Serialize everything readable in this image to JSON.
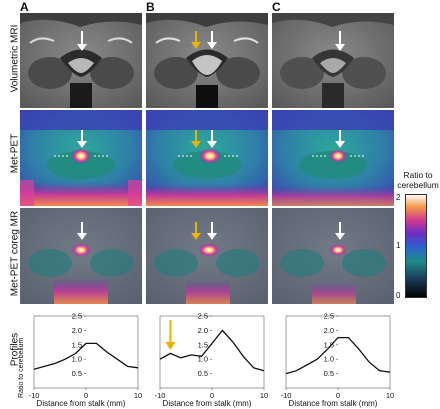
{
  "columns": [
    {
      "letter": "A"
    },
    {
      "letter": "B"
    },
    {
      "letter": "C"
    }
  ],
  "rows": [
    {
      "label": "Volumetric MRI"
    },
    {
      "label": "Met-PET"
    },
    {
      "label": "Met-PET coreg MR"
    },
    {
      "label": "Profiles"
    }
  ],
  "colorbar": {
    "title_line1": "Ratio to",
    "title_line2": "cerebellum",
    "ticks": [
      "2",
      "1",
      "0"
    ],
    "range": [
      0,
      2
    ]
  },
  "colors": {
    "white_arrow": "#ffffff",
    "yellow_arrow": "#e8b400"
  },
  "chart_data": [
    {
      "type": "line",
      "panel": "A",
      "ylabel": "Ratio to cerebellum",
      "xlabel": "Distance from stalk (mm)",
      "xlim": [
        -10,
        10
      ],
      "ylim": [
        0,
        2.5
      ],
      "xticks": [
        "-10",
        "0",
        "10"
      ],
      "yticks": [
        "0.0",
        "0.5",
        "1.0",
        "1.5",
        "2.0",
        "2.5"
      ],
      "x": [
        -10,
        -8,
        -6,
        -4,
        -2,
        0,
        2,
        4,
        6,
        8,
        10
      ],
      "values": [
        0.65,
        0.75,
        0.85,
        1.0,
        1.2,
        1.55,
        1.55,
        1.25,
        1.0,
        0.75,
        0.7
      ]
    },
    {
      "type": "line",
      "panel": "B",
      "xlabel": "Distance from stalk (mm)",
      "xlim": [
        -10,
        10
      ],
      "ylim": [
        0,
        2.5
      ],
      "xticks": [
        "-10",
        "0",
        "10"
      ],
      "yticks": [
        "0.0",
        "0.5",
        "1.0",
        "1.5",
        "2.0",
        "2.5"
      ],
      "x": [
        -10,
        -8,
        -6,
        -4,
        -2,
        0,
        2,
        4,
        6,
        8,
        10
      ],
      "values": [
        1.0,
        1.2,
        1.05,
        1.15,
        1.1,
        1.55,
        2.0,
        1.6,
        1.1,
        0.7,
        0.6
      ],
      "annotation": {
        "x": -8,
        "arrow_color": "yellow"
      }
    },
    {
      "type": "line",
      "panel": "C",
      "xlabel": "Distance from stalk (mm)",
      "xlim": [
        -10,
        10
      ],
      "ylim": [
        0,
        2.5
      ],
      "xticks": [
        "-10",
        "0",
        "10"
      ],
      "yticks": [
        "0.0",
        "0.5",
        "1.0",
        "1.5",
        "2.0",
        "2.5"
      ],
      "x": [
        -10,
        -8,
        -6,
        -4,
        -2,
        0,
        2,
        4,
        6,
        8,
        10
      ],
      "values": [
        0.5,
        0.6,
        0.8,
        1.0,
        1.35,
        1.75,
        1.75,
        1.35,
        0.9,
        0.6,
        0.55
      ]
    }
  ]
}
